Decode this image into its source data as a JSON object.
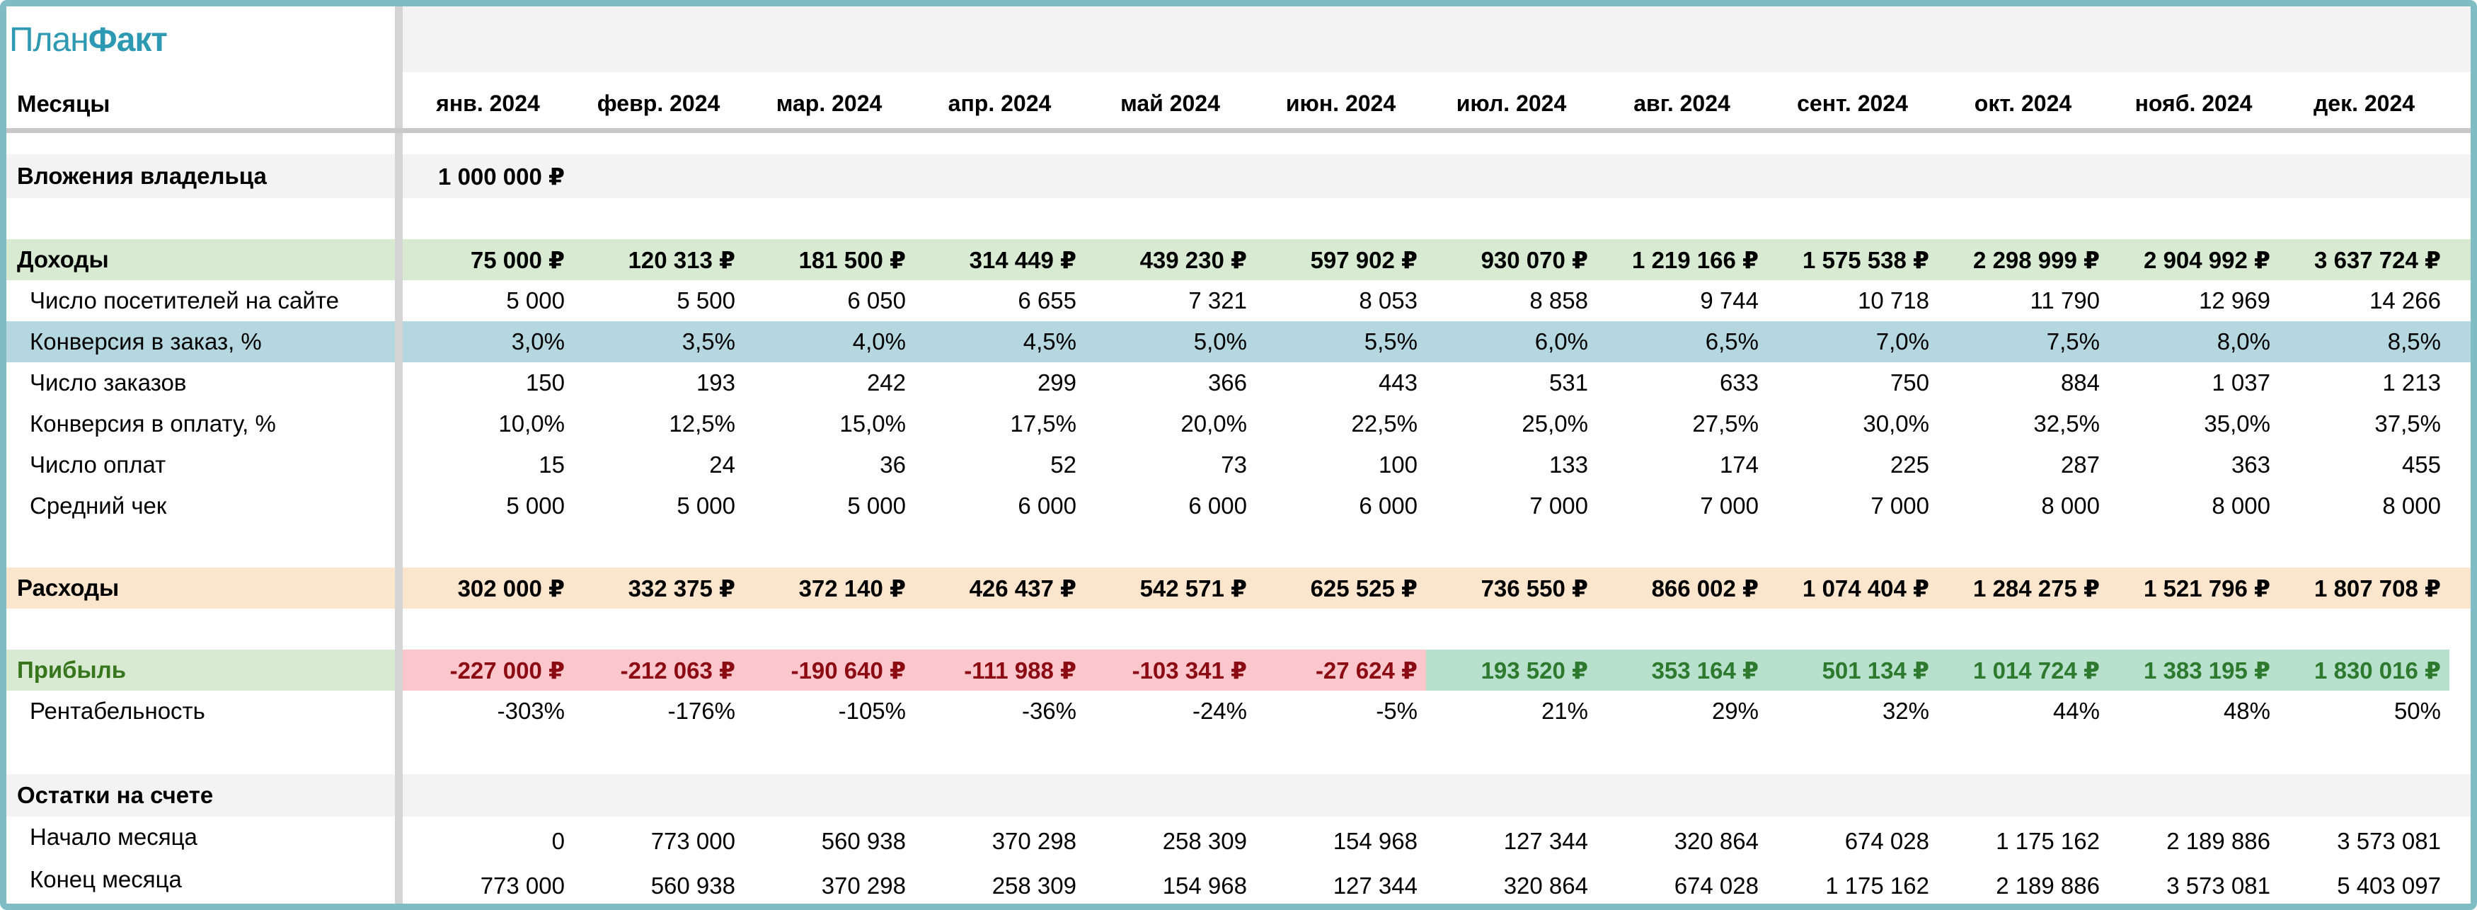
{
  "logo": {
    "part1": "План",
    "part2": "Факт"
  },
  "header": {
    "label": "Месяцы",
    "months": [
      "янв. 2024",
      "февр. 2024",
      "мар. 2024",
      "апр. 2024",
      "май 2024",
      "июн. 2024",
      "июл. 2024",
      "авг. 2024",
      "сент. 2024",
      "окт. 2024",
      "нояб. 2024",
      "дек. 2024"
    ]
  },
  "owner": {
    "label": "Вложения владельца",
    "value": "1 000 000 ₽"
  },
  "income": {
    "label": "Доходы",
    "values": [
      "75 000 ₽",
      "120 313 ₽",
      "181 500 ₽",
      "314 449 ₽",
      "439 230 ₽",
      "597 902 ₽",
      "930 070 ₽",
      "1 219 166 ₽",
      "1 575 538 ₽",
      "2 298 999 ₽",
      "2 904 992 ₽",
      "3 637 724 ₽"
    ],
    "rows": [
      {
        "label": "Число посетителей на сайте",
        "values": [
          "5 000",
          "5 500",
          "6 050",
          "6 655",
          "7 321",
          "8 053",
          "8 858",
          "9 744",
          "10 718",
          "11 790",
          "12 969",
          "14 266"
        ]
      },
      {
        "label": "Конверсия в заказ, %",
        "values": [
          "3,0%",
          "3,5%",
          "4,0%",
          "4,5%",
          "5,0%",
          "5,5%",
          "6,0%",
          "6,5%",
          "7,0%",
          "7,5%",
          "8,0%",
          "8,5%"
        ]
      },
      {
        "label": "Число заказов",
        "values": [
          "150",
          "193",
          "242",
          "299",
          "366",
          "443",
          "531",
          "633",
          "750",
          "884",
          "1 037",
          "1 213"
        ]
      },
      {
        "label": "Конверсия в оплату, %",
        "values": [
          "10,0%",
          "12,5%",
          "15,0%",
          "17,5%",
          "20,0%",
          "22,5%",
          "25,0%",
          "27,5%",
          "30,0%",
          "32,5%",
          "35,0%",
          "37,5%"
        ]
      },
      {
        "label": "Число оплат",
        "values": [
          "15",
          "24",
          "36",
          "52",
          "73",
          "100",
          "133",
          "174",
          "225",
          "287",
          "363",
          "455"
        ]
      },
      {
        "label": "Средний чек",
        "values": [
          "5 000",
          "5 000",
          "5 000",
          "6 000",
          "6 000",
          "6 000",
          "7 000",
          "7 000",
          "7 000",
          "8 000",
          "8 000",
          "8 000"
        ]
      }
    ]
  },
  "expenses": {
    "label": "Расходы",
    "values": [
      "302 000 ₽",
      "332 375 ₽",
      "372 140 ₽",
      "426 437 ₽",
      "542 571 ₽",
      "625 525 ₽",
      "736 550 ₽",
      "866 002 ₽",
      "1 074 404 ₽",
      "1 284 275 ₽",
      "1 521 796 ₽",
      "1 807 708 ₽"
    ]
  },
  "profit": {
    "label": "Прибыль",
    "values": [
      "-227 000 ₽",
      "-212 063 ₽",
      "-190 640 ₽",
      "-111 988 ₽",
      "-103 341 ₽",
      "-27 624 ₽",
      "193 520 ₽",
      "353 164 ₽",
      "501 134 ₽",
      "1 014 724 ₽",
      "1 383 195 ₽",
      "1 830 016 ₽"
    ],
    "rent_label": "Рентабельность",
    "rent_values": [
      "-303%",
      "-176%",
      "-105%",
      "-36%",
      "-24%",
      "-5%",
      "21%",
      "29%",
      "32%",
      "44%",
      "48%",
      "50%"
    ]
  },
  "balance": {
    "label": "Остатки на счете",
    "start_label": "Начало месяца",
    "start_values": [
      "0",
      "773 000",
      "560 938",
      "370 298",
      "258 309",
      "154 968",
      "127 344",
      "320 864",
      "674 028",
      "1 175 162",
      "2 189 886",
      "3 573 081"
    ],
    "end_label": "Конец месяца",
    "end_values": [
      "773 000",
      "560 938",
      "370 298",
      "258 309",
      "154 968",
      "127 344",
      "320 864",
      "674 028",
      "1 175 162",
      "2 189 886",
      "3 573 081",
      "5 403 097"
    ]
  },
  "colors": {
    "income_bg": "#d9ead3",
    "expenses_bg": "#fce5cd",
    "highlight_bg": "#b5d7df",
    "gray_bg": "#f3f3f3",
    "negative_bg": "#fbc6cc",
    "positive_bg": "#b7e1cd",
    "profit_label": "#38761d"
  }
}
